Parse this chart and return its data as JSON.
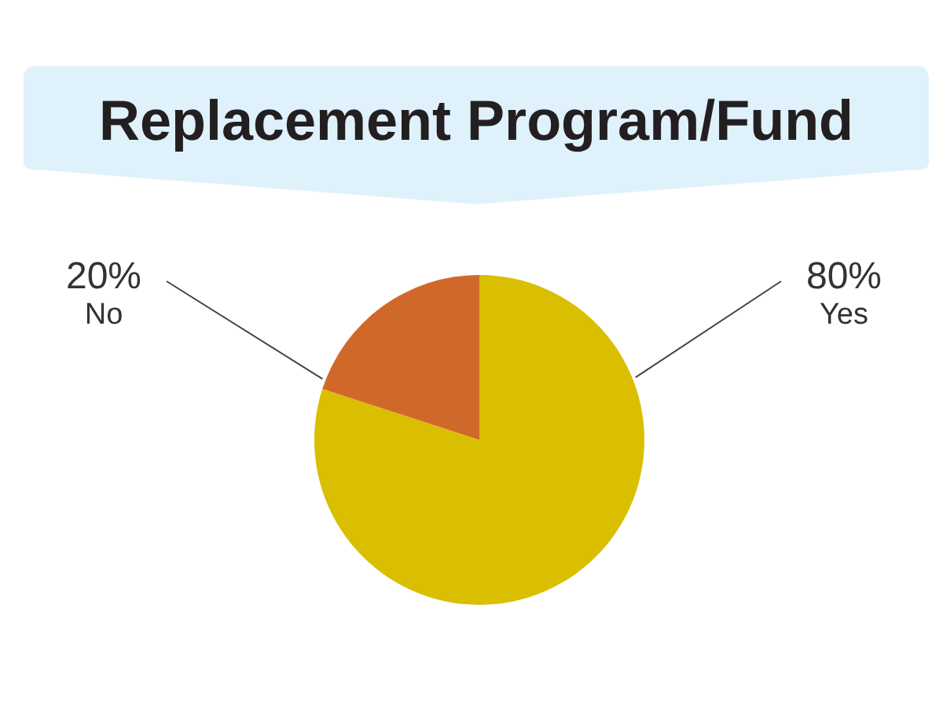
{
  "chart_data": {
    "type": "pie",
    "title": "Replacement Program/Fund",
    "categories": [
      "Yes",
      "No"
    ],
    "values": [
      80,
      20
    ],
    "value_labels": [
      "80%",
      "20%"
    ],
    "colors": [
      "#d9bf00",
      "#d0682a"
    ]
  }
}
